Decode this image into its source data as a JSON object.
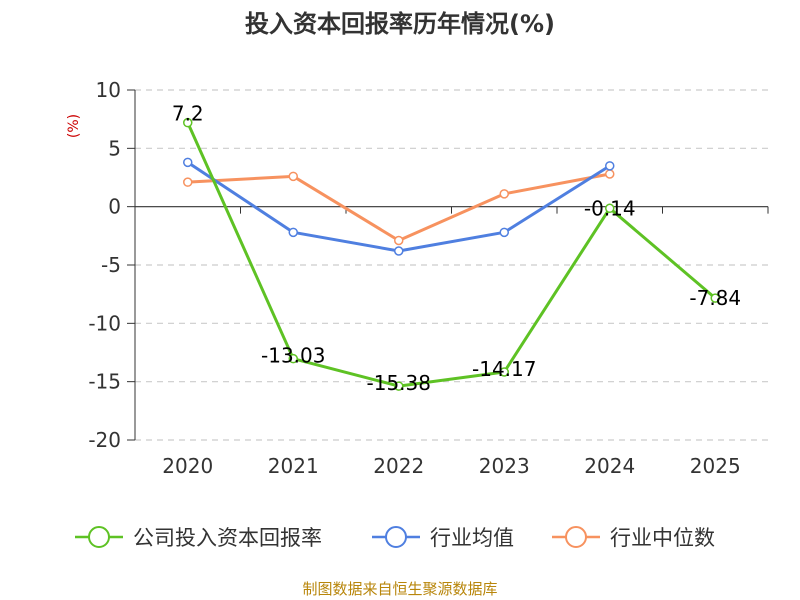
{
  "chart_data": {
    "type": "line",
    "title": "投入资本回报率历年情况(%)",
    "ylabel": "(%)",
    "xlabel": "",
    "categories": [
      "2020",
      "2021",
      "2022",
      "2023",
      "2024",
      "2025"
    ],
    "ylim": [
      -20,
      10
    ],
    "yticks": [
      10,
      5,
      0,
      -5,
      -10,
      -15,
      -20
    ],
    "ytick_labels": [
      "10",
      "5",
      "0",
      "-5",
      "-10",
      "-15",
      "-20"
    ],
    "grid": true,
    "legend_position": "bottom",
    "series": [
      {
        "name": "公司投入资本回报率",
        "color": "#5ec224",
        "values": [
          7.2,
          -13.03,
          -15.38,
          -14.17,
          -0.14,
          -7.84
        ],
        "labels": [
          "7.2",
          "-13.03",
          "-15.38",
          "-14.17",
          "-0.14",
          "-7.84"
        ]
      },
      {
        "name": "行业均值",
        "color": "#4f7fe0",
        "values": [
          3.8,
          -2.2,
          -3.8,
          -2.2,
          3.5,
          null
        ]
      },
      {
        "name": "行业中位数",
        "color": "#f7925f",
        "values": [
          2.1,
          2.6,
          -2.9,
          1.1,
          2.8,
          null
        ]
      }
    ],
    "source": "制图数据来自恒生聚源数据库"
  }
}
